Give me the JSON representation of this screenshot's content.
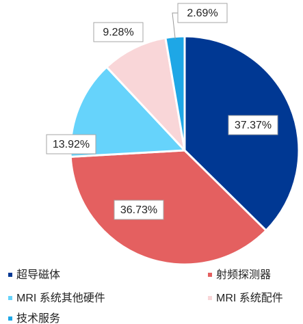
{
  "chart_data": {
    "type": "pie",
    "categories": [
      "超导磁体",
      "射频探测器",
      "MRI 系统其他硬件",
      "MRI 系统配件",
      "技术服务"
    ],
    "values": [
      37.37,
      36.73,
      13.92,
      9.28,
      2.69
    ],
    "value_labels": [
      "37.37%",
      "36.73%",
      "13.92%",
      "9.28%",
      "2.69%"
    ],
    "colors": [
      "#003893",
      "#e46060",
      "#66d3fb",
      "#f9d6d8",
      "#1ea7e6"
    ],
    "legend": "bottom"
  }
}
